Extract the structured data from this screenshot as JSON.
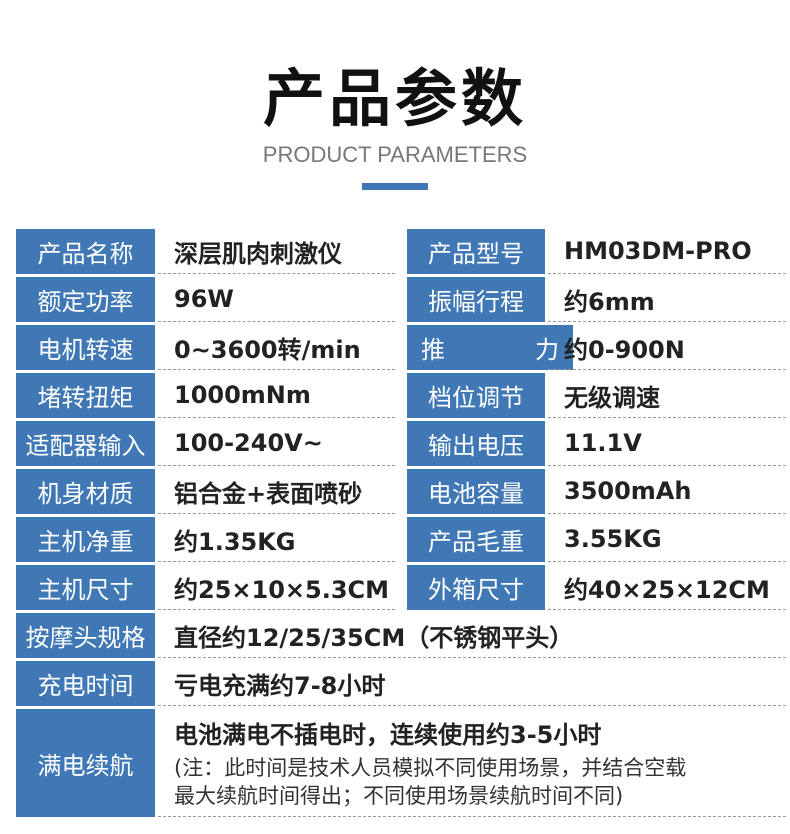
{
  "header": {
    "title": "产品参数",
    "subtitle": "PRODUCT PARAMETERS"
  },
  "rows2": [
    {
      "l1": "产品名称",
      "v1": "深层肌肉刺激仪",
      "l2": "产品型号",
      "v2": "HM03DM-PRO"
    },
    {
      "l1": "额定功率",
      "v1": "96W",
      "l2": "振幅行程",
      "v2": "约6mm"
    },
    {
      "l1": "电机转速",
      "v1": "0~3600转/min",
      "l2": "推力",
      "v2": "约0-900N"
    },
    {
      "l1": "堵转扭矩",
      "v1": "1000mNm",
      "l2": "档位调节",
      "v2": "无级调速"
    },
    {
      "l1": "适配器输入",
      "v1": "100-240V~",
      "l2": "输出电压",
      "v2": "11.1V"
    },
    {
      "l1": "机身材质",
      "v1": "铝合金+表面喷砂",
      "l2": "电池容量",
      "v2": "3500mAh"
    },
    {
      "l1": "主机净重",
      "v1": "约1.35KG",
      "l2": "产品毛重",
      "v2": "3.55KG"
    },
    {
      "l1": "主机尺寸",
      "v1": "约25×10×5.3CM",
      "l2": "外箱尺寸",
      "v2": "约40×25×12CM"
    }
  ],
  "rows_wide": [
    {
      "label": "按摩头规格",
      "value": "直径约12/25/35CM（不锈钢平头）"
    },
    {
      "label": "充电时间",
      "value": "亏电充满约7-8小时"
    }
  ],
  "battery": {
    "label": "满电续航",
    "value": "电池满电不插电时，连续使用约3-5小时",
    "note_line1": "(注：此时间是技术人员模拟不同使用场景，并结合空载",
    "note_line2": "最大续航时间得出；不同使用场景续航时间不同)"
  },
  "colors": {
    "accent": "#3f78b4"
  }
}
